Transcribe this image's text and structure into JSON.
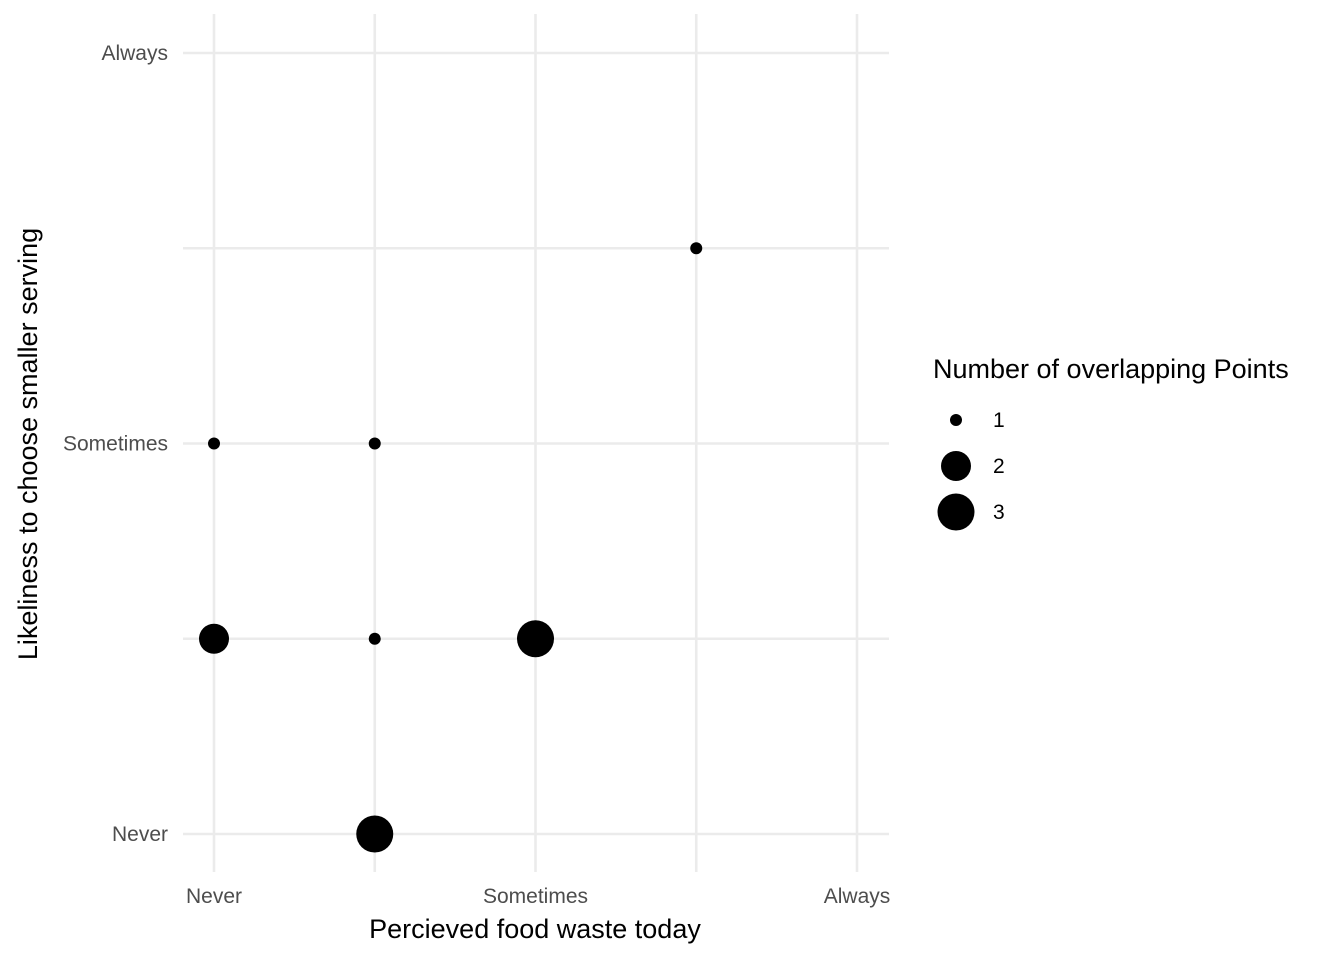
{
  "chart_data": {
    "type": "scatter",
    "xlabel": "Percieved food waste today",
    "ylabel": "Likeliness to choose smaller serving",
    "x_ticks": [
      {
        "value": 1,
        "label": "Never"
      },
      {
        "value": 2,
        "label": ""
      },
      {
        "value": 3,
        "label": "Sometimes"
      },
      {
        "value": 4,
        "label": ""
      },
      {
        "value": 5,
        "label": "Always"
      }
    ],
    "y_ticks": [
      {
        "value": 1,
        "label": "Never"
      },
      {
        "value": 2,
        "label": ""
      },
      {
        "value": 3,
        "label": "Sometimes"
      },
      {
        "value": 4,
        "label": ""
      },
      {
        "value": 5,
        "label": "Always"
      }
    ],
    "xlim": [
      1,
      5
    ],
    "ylim": [
      1,
      5
    ],
    "grid": true,
    "legend": {
      "title": "Number of overlapping Points",
      "position": "right",
      "entries": [
        {
          "value": 1,
          "label": "1"
        },
        {
          "value": 2,
          "label": "2"
        },
        {
          "value": 3,
          "label": "3"
        }
      ]
    },
    "points": [
      {
        "x": 1,
        "y": 3,
        "n": 1
      },
      {
        "x": 2,
        "y": 3,
        "n": 1
      },
      {
        "x": 4,
        "y": 4,
        "n": 1
      },
      {
        "x": 1,
        "y": 2,
        "n": 2
      },
      {
        "x": 2,
        "y": 2,
        "n": 1
      },
      {
        "x": 3,
        "y": 2,
        "n": 3
      },
      {
        "x": 2,
        "y": 1,
        "n": 3
      }
    ],
    "point_color": "#000000"
  }
}
